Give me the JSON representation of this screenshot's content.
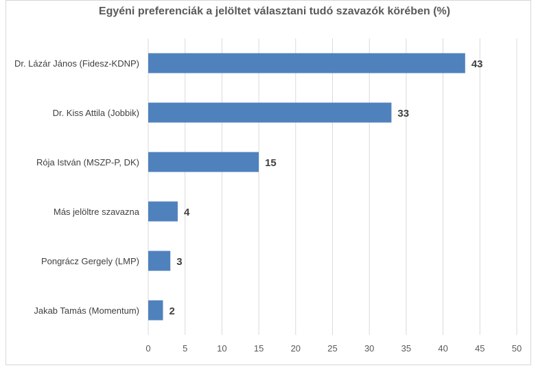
{
  "chart_data": {
    "type": "bar",
    "orientation": "horizontal",
    "title": "Egyéni preferenciák a jelöltet választani tudó szavazók körében (%)",
    "categories": [
      "Dr. Lázár János (Fidesz-KDNP)",
      "Dr. Kiss Attila (Jobbik)",
      "Rója István (MSZP-P, DK)",
      "Más jelöltre szavazna",
      "Pongrácz Gergely (LMP)",
      "Jakab Tamás (Momentum)"
    ],
    "values": [
      43,
      33,
      15,
      4,
      3,
      2
    ],
    "xlim": [
      0,
      50
    ],
    "xticks": [
      0,
      5,
      10,
      15,
      20,
      25,
      30,
      35,
      40,
      45,
      50
    ],
    "grid": true,
    "bar_color": "#4f81bd",
    "grid_color": "#d9d9d9"
  }
}
